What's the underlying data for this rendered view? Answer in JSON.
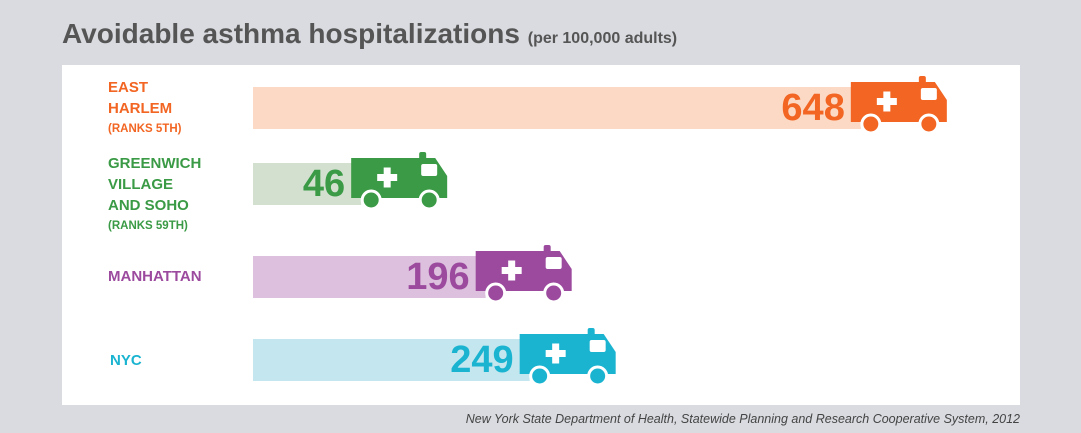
{
  "chart_data": {
    "type": "bar",
    "title": "Avoidable asthma hospitalizations",
    "subtitle": "(per 100,000 adults)",
    "source": "New York State Department of Health, Statewide Planning and Research Cooperative System, 2012",
    "categories": [
      "EAST\nHARLEM",
      "GREENWICH\nVILLAGE\nAND SOHO",
      "MANHATTAN",
      "NYC"
    ],
    "rank_notes": [
      "(RANKS 5TH)",
      "(RANKS 59TH)",
      null,
      null
    ],
    "values": [
      648,
      46,
      196,
      249
    ],
    "colors": [
      "#f26522",
      "#3a9a45",
      "#9b4a9e",
      "#1ab4d1"
    ],
    "bar_colors": [
      "#fcd9c4",
      "#d3e0d0",
      "#dcc0dd",
      "#c3e6ef"
    ]
  }
}
